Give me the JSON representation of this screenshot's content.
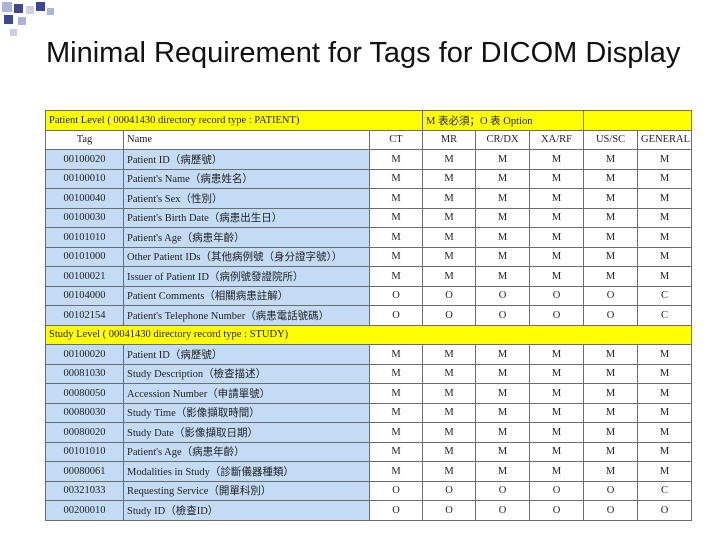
{
  "title": "Minimal Requirement for Tags for DICOM Display",
  "colors": {
    "level_bg": "#ffff00",
    "tag_bg": "#c3dbf5",
    "square_dark": "#3b4a8f",
    "square_light": "#aab4dc"
  },
  "patient_level": {
    "label": "Patient Level ( 00041430 directory record type : PATIENT)",
    "legend": "M 表必須；O 表 Option"
  },
  "columns": [
    "Tag",
    "Name",
    "CT",
    "MR",
    "CR/DX",
    "XA/RF",
    "US/SC",
    "GENERAL"
  ],
  "patient_rows": [
    {
      "tag": "00100020",
      "name": "Patient ID（病歷號）",
      "values": [
        "M",
        "M",
        "M",
        "M",
        "M",
        "M"
      ]
    },
    {
      "tag": "00100010",
      "name": "Patient's Name（病患姓名）",
      "values": [
        "M",
        "M",
        "M",
        "M",
        "M",
        "M"
      ]
    },
    {
      "tag": "00100040",
      "name": "Patient's Sex（性別）",
      "values": [
        "M",
        "M",
        "M",
        "M",
        "M",
        "M"
      ]
    },
    {
      "tag": "00100030",
      "name": "Patient's Birth Date（病患出生日）",
      "values": [
        "M",
        "M",
        "M",
        "M",
        "M",
        "M"
      ]
    },
    {
      "tag": "00101010",
      "name": "Patient's Age（病患年齡）",
      "values": [
        "M",
        "M",
        "M",
        "M",
        "M",
        "M"
      ]
    },
    {
      "tag": "00101000",
      "name": "Other Patient IDs（其他病例號（身分證字號））",
      "values": [
        "M",
        "M",
        "M",
        "M",
        "M",
        "M"
      ]
    },
    {
      "tag": "00100021",
      "name": "Issuer of Patient ID（病例號發證院所）",
      "values": [
        "M",
        "M",
        "M",
        "M",
        "M",
        "M"
      ]
    },
    {
      "tag": "00104000",
      "name": "Patient Comments（相關病患註解）",
      "values": [
        "O",
        "O",
        "O",
        "O",
        "O",
        "C"
      ]
    },
    {
      "tag": "00102154",
      "name": "Patient's Telephone Number（病患電話號碼）",
      "values": [
        "O",
        "O",
        "O",
        "O",
        "O",
        "C"
      ]
    }
  ],
  "study_level": {
    "label": "Study Level ( 00041430 directory record type : STUDY)"
  },
  "study_rows": [
    {
      "tag": "00100020",
      "name": "Patient ID（病歷號）",
      "values": [
        "M",
        "M",
        "M",
        "M",
        "M",
        "M"
      ]
    },
    {
      "tag": "00081030",
      "name": "Study Description（檢查描述）",
      "values": [
        "M",
        "M",
        "M",
        "M",
        "M",
        "M"
      ]
    },
    {
      "tag": "00080050",
      "name": "Accession Number（申請單號）",
      "values": [
        "M",
        "M",
        "M",
        "M",
        "M",
        "M"
      ]
    },
    {
      "tag": "00080030",
      "name": "Study Time（影像擷取時間）",
      "values": [
        "M",
        "M",
        "M",
        "M",
        "M",
        "M"
      ]
    },
    {
      "tag": "00080020",
      "name": "Study Date（影像擷取日期）",
      "values": [
        "M",
        "M",
        "M",
        "M",
        "M",
        "M"
      ]
    },
    {
      "tag": "00101010",
      "name": "Patient's Age（病患年齡）",
      "values": [
        "M",
        "M",
        "M",
        "M",
        "M",
        "M"
      ]
    },
    {
      "tag": "00080061",
      "name": "Modalities in Study（診斷儀器種類）",
      "values": [
        "M",
        "M",
        "M",
        "M",
        "M",
        "M"
      ]
    },
    {
      "tag": "00321033",
      "name": "Requesting Service（開單科別）",
      "values": [
        "O",
        "O",
        "O",
        "O",
        "O",
        "C"
      ]
    },
    {
      "tag": "00200010",
      "name": "Study ID（檢查ID）",
      "values": [
        "O",
        "O",
        "O",
        "O",
        "O",
        "O"
      ]
    }
  ]
}
